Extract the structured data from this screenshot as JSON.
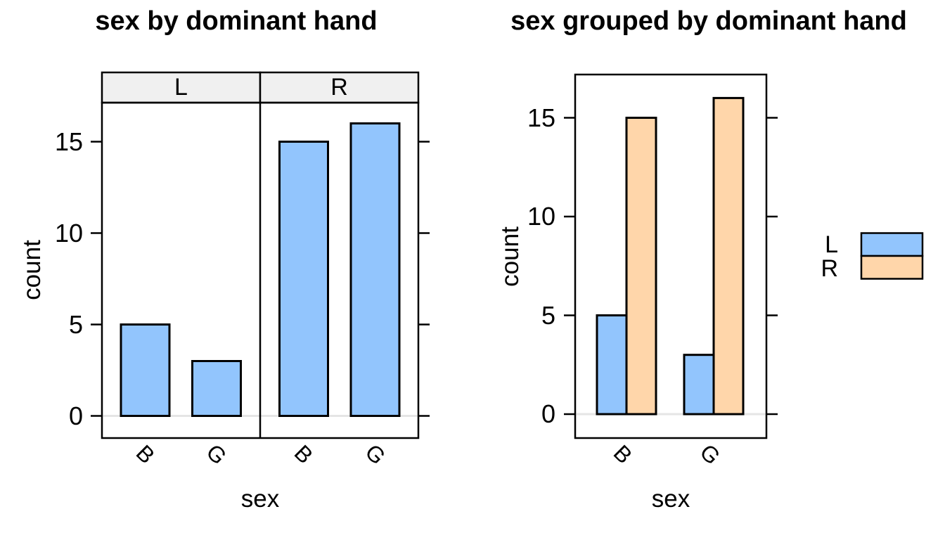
{
  "chart_data": [
    {
      "type": "bar",
      "layout": "faceted",
      "title": "sex by dominant hand",
      "xlabel": "sex",
      "ylabel": "count",
      "facet_labels": [
        "L",
        "R"
      ],
      "categories": [
        "B",
        "G"
      ],
      "series": [
        {
          "facet": "L",
          "values": [
            5,
            3
          ]
        },
        {
          "facet": "R",
          "values": [
            15,
            16
          ]
        }
      ],
      "yticks": [
        0,
        5,
        10,
        15
      ],
      "ylim": [
        -1.2,
        17.2
      ],
      "grid": "zero-line-only",
      "bar_fill": "#92C5FD",
      "bar_border": "#000000",
      "strip_fill": "#F0F0F0",
      "zero_line_color": "#E5E5E5",
      "legend": null
    },
    {
      "type": "bar",
      "layout": "grouped",
      "title": "sex grouped by dominant hand",
      "xlabel": "sex",
      "ylabel": "count",
      "categories": [
        "B",
        "G"
      ],
      "series": [
        {
          "name": "L",
          "color": "#92C5FD",
          "values": [
            5,
            3
          ]
        },
        {
          "name": "R",
          "color": "#FFD6AA",
          "values": [
            15,
            16
          ]
        }
      ],
      "yticks": [
        0,
        5,
        10,
        15
      ],
      "ylim": [
        -1.2,
        17.2
      ],
      "grid": "zero-line-only",
      "bar_border": "#000000",
      "zero_line_color": "#E5E5E5",
      "legend": {
        "position": "right",
        "items": [
          "L",
          "R"
        ]
      }
    }
  ]
}
